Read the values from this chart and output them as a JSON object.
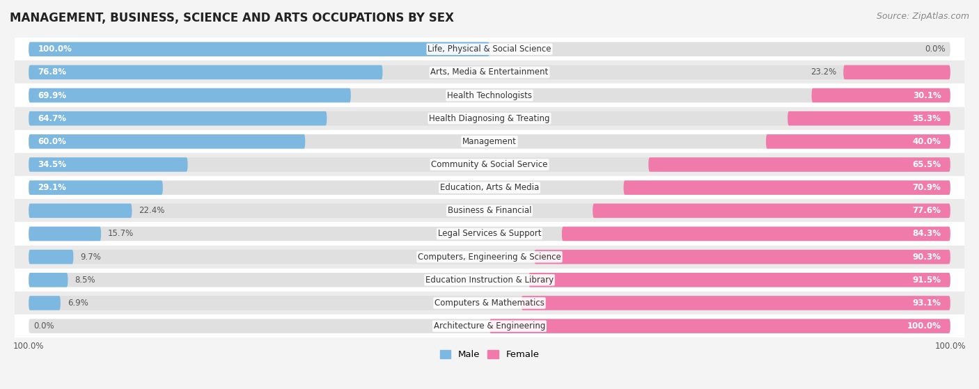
{
  "title": "MANAGEMENT, BUSINESS, SCIENCE AND ARTS OCCUPATIONS BY SEX",
  "source": "Source: ZipAtlas.com",
  "categories": [
    "Life, Physical & Social Science",
    "Arts, Media & Entertainment",
    "Health Technologists",
    "Health Diagnosing & Treating",
    "Management",
    "Community & Social Service",
    "Education, Arts & Media",
    "Business & Financial",
    "Legal Services & Support",
    "Computers, Engineering & Science",
    "Education Instruction & Library",
    "Computers & Mathematics",
    "Architecture & Engineering"
  ],
  "male_pct": [
    100.0,
    76.8,
    69.9,
    64.7,
    60.0,
    34.5,
    29.1,
    22.4,
    15.7,
    9.7,
    8.5,
    6.9,
    0.0
  ],
  "female_pct": [
    0.0,
    23.2,
    30.1,
    35.3,
    40.0,
    65.5,
    70.9,
    77.6,
    84.3,
    90.3,
    91.5,
    93.1,
    100.0
  ],
  "male_color": "#7db8e0",
  "female_color": "#f07aaa",
  "bg_color": "#f4f4f4",
  "row_color_odd": "#ffffff",
  "row_color_even": "#ebebeb",
  "track_color": "#e0e0e0",
  "title_fontsize": 12,
  "source_fontsize": 9,
  "label_fontsize": 8.5,
  "bar_height": 0.62,
  "fig_width": 14.06,
  "fig_height": 5.59
}
